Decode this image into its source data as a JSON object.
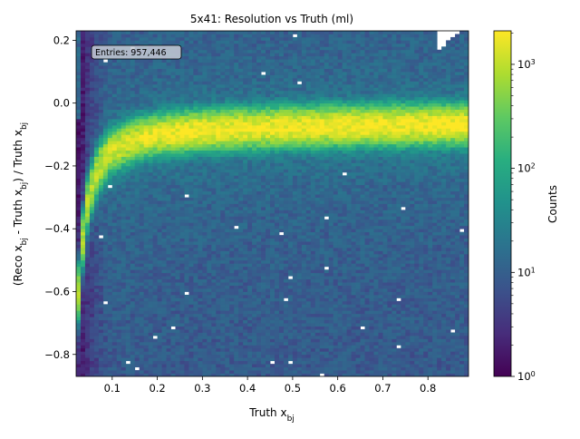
{
  "chart_data": {
    "type": "heatmap",
    "title": "5x41: Resolution vs Truth (ml)",
    "xlabel_base": "Truth x",
    "xlabel_sub": "bj",
    "ylabel": {
      "p1": "(Reco x",
      "s1": "bj",
      "p2": " - Truth x",
      "s2": "bj",
      "p3": ") / Truth x",
      "s3": "bj"
    },
    "xlim": [
      0.02,
      0.89
    ],
    "ylim": [
      -0.87,
      0.23
    ],
    "x_ticks": [
      0.1,
      0.2,
      0.3,
      0.4,
      0.5,
      0.6,
      0.7,
      0.8
    ],
    "x_tick_labels": [
      "0.1",
      "0.2",
      "0.3",
      "0.4",
      "0.5",
      "0.6",
      "0.7",
      "0.8"
    ],
    "y_ticks": [
      0.2,
      0.0,
      -0.2,
      -0.4,
      -0.6,
      -0.8
    ],
    "y_tick_labels": [
      "0.2",
      "0.0",
      "−0.2",
      "−0.4",
      "−0.6",
      "−0.8"
    ],
    "colorbar": {
      "label": "Counts",
      "scale": "log",
      "range": [
        1,
        2100
      ],
      "colormap": "viridis",
      "ticks": [
        1,
        10,
        100,
        1000
      ],
      "tick_base": [
        "10",
        "10",
        "10",
        "10"
      ],
      "tick_exp": [
        "0",
        "1",
        "2",
        "3"
      ]
    },
    "annotation": "Entries: 957,446",
    "bins": {
      "x": 87,
      "y": 110
    },
    "ridge_center": [
      [
        0.025,
        -0.6
      ],
      [
        0.04,
        -0.35
      ],
      [
        0.06,
        -0.24
      ],
      [
        0.08,
        -0.18
      ],
      [
        0.1,
        -0.15
      ],
      [
        0.15,
        -0.115
      ],
      [
        0.2,
        -0.1
      ],
      [
        0.3,
        -0.085
      ],
      [
        0.5,
        -0.075
      ],
      [
        0.7,
        -0.07
      ],
      [
        0.89,
        -0.068
      ]
    ],
    "ridge_peak_counts": 2000,
    "background_counts": 15
  }
}
